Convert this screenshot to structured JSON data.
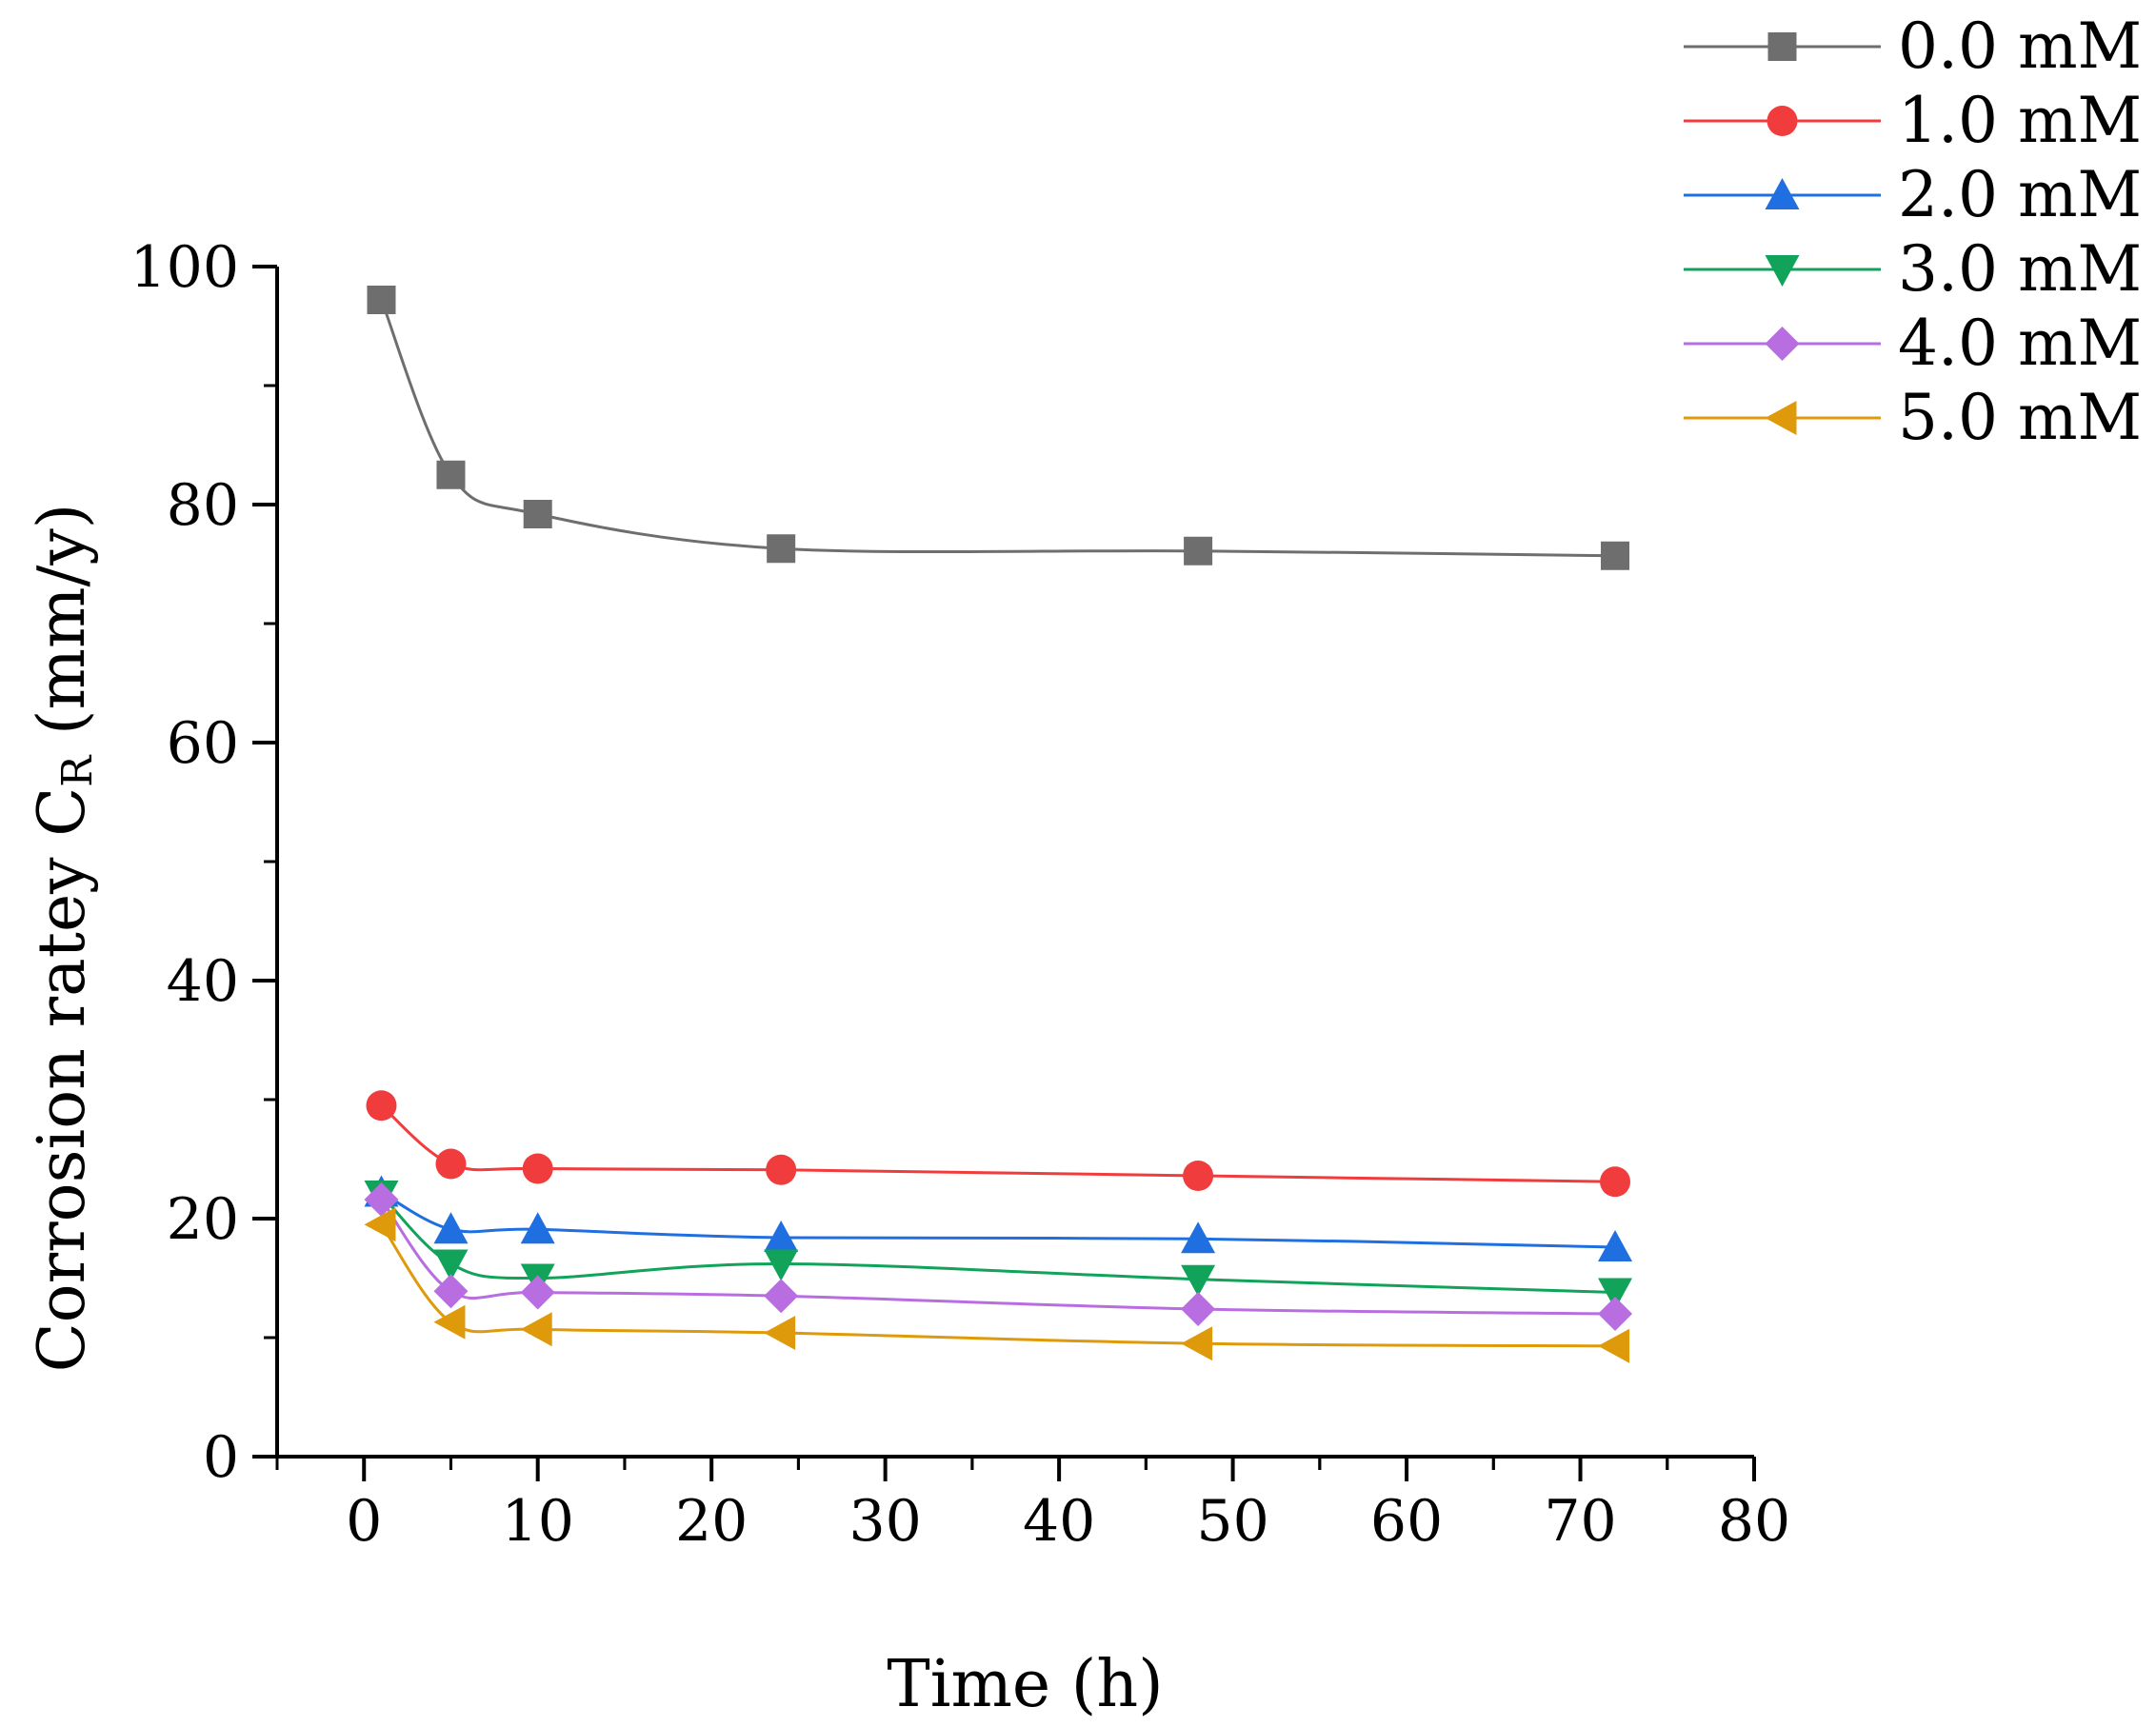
{
  "chart_data": {
    "type": "line",
    "title": "",
    "xlabel": "Time (h)",
    "ylabel": "Corrosion ratey C",
    "ylabel_subscript": "R",
    "ylabel_suffix": " (mm/y)",
    "xlim": [
      -5,
      80
    ],
    "ylim": [
      0,
      100
    ],
    "xticks": [
      0,
      10,
      20,
      30,
      40,
      50,
      60,
      70,
      80
    ],
    "xtick_labels": [
      "0",
      "10",
      "20",
      "30",
      "40",
      "50",
      "60",
      "70",
      "80"
    ],
    "yticks": [
      0,
      20,
      40,
      60,
      80,
      100
    ],
    "ytick_labels": [
      "0",
      "20",
      "40",
      "60",
      "80",
      "100"
    ],
    "grid": false,
    "legend_position": "top-right outside",
    "x": [
      1,
      5,
      10,
      24,
      48,
      72
    ],
    "series": [
      {
        "name": "0.0 mM",
        "color": "#6e6e6e",
        "marker": "square",
        "values": [
          97.2,
          82.5,
          79.2,
          76.3,
          76.1,
          75.7
        ]
      },
      {
        "name": "1.0 mM",
        "color": "#f03c3c",
        "marker": "circle",
        "values": [
          29.5,
          24.6,
          24.2,
          24.1,
          23.6,
          23.1
        ]
      },
      {
        "name": "2.0 mM",
        "color": "#1f6fe0",
        "marker": "triangle-up",
        "values": [
          22.2,
          19.1,
          19.1,
          18.4,
          18.3,
          17.6
        ]
      },
      {
        "name": "3.0 mM",
        "color": "#12a35a",
        "marker": "triangle-down",
        "values": [
          22.0,
          16.2,
          15.0,
          16.2,
          14.9,
          13.8
        ]
      },
      {
        "name": "4.0 mM",
        "color": "#b86ee0",
        "marker": "diamond",
        "values": [
          21.6,
          13.9,
          13.8,
          13.5,
          12.4,
          12.0
        ]
      },
      {
        "name": "5.0 mM",
        "color": "#de9a0a",
        "marker": "triangle-left",
        "values": [
          19.5,
          11.3,
          10.7,
          10.4,
          9.5,
          9.3
        ]
      }
    ]
  }
}
